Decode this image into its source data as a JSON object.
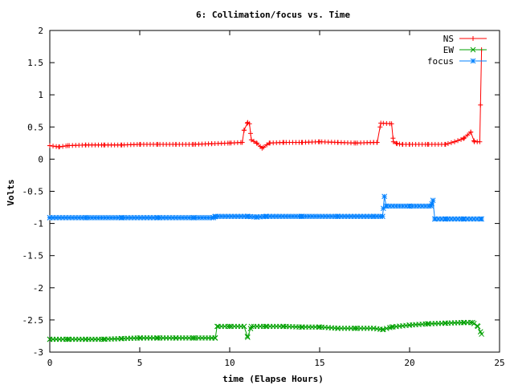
{
  "chart_data": {
    "type": "line",
    "title": "6: Collimation/focus vs. Time",
    "xlabel": "time (Elapse Hours)",
    "ylabel": "Volts",
    "xlim": [
      0,
      25
    ],
    "ylim": [
      -3,
      2
    ],
    "xticks": [
      0,
      5,
      10,
      15,
      20,
      25
    ],
    "xtick_labels": [
      "0",
      "5",
      "10",
      "15",
      "20",
      "25"
    ],
    "yticks": [
      2,
      1.5,
      1,
      0.5,
      0,
      -0.5,
      -1,
      -1.5,
      -2,
      -2.5,
      -3
    ],
    "ytick_labels": [
      "2",
      "1.5",
      "1",
      "0.5",
      "0",
      "-0.5",
      "-1",
      "-1.5",
      "-2",
      "-2.5",
      "-3"
    ],
    "legend_position": "top-right",
    "series": [
      {
        "name": "NS",
        "color": "#ff0000",
        "marker": "plus",
        "x": [
          0,
          0.5,
          1,
          2,
          3,
          4,
          5,
          6,
          7,
          8,
          9,
          10,
          10.7,
          10.8,
          11.0,
          11.1,
          11.2,
          11.5,
          11.8,
          12.2,
          13,
          14,
          15,
          16,
          17,
          18,
          18.2,
          18.4,
          19.0,
          19.1,
          19.3,
          19.6,
          20,
          21,
          22,
          22.5,
          23,
          23.4,
          23.6,
          23.9,
          24.0
        ],
        "y": [
          0.21,
          0.19,
          0.21,
          0.22,
          0.22,
          0.22,
          0.23,
          0.23,
          0.23,
          0.23,
          0.24,
          0.25,
          0.26,
          0.45,
          0.57,
          0.55,
          0.3,
          0.25,
          0.17,
          0.25,
          0.26,
          0.26,
          0.27,
          0.26,
          0.25,
          0.26,
          0.26,
          0.56,
          0.55,
          0.27,
          0.24,
          0.23,
          0.23,
          0.23,
          0.23,
          0.27,
          0.32,
          0.42,
          0.27,
          0.27,
          1.7
        ]
      },
      {
        "name": "EW",
        "color": "#00a000",
        "marker": "x",
        "x": [
          0,
          1,
          2,
          3,
          4,
          5,
          6,
          7,
          8,
          9,
          9.2,
          9.3,
          10,
          10.8,
          11.0,
          11.2,
          12,
          13,
          14,
          15,
          16,
          17,
          18,
          18.5,
          19,
          20,
          21,
          22,
          23,
          23.5,
          23.8,
          24.0
        ],
        "y": [
          -2.8,
          -2.8,
          -2.8,
          -2.8,
          -2.79,
          -2.78,
          -2.78,
          -2.78,
          -2.78,
          -2.78,
          -2.78,
          -2.6,
          -2.6,
          -2.6,
          -2.77,
          -2.6,
          -2.6,
          -2.6,
          -2.61,
          -2.61,
          -2.63,
          -2.63,
          -2.63,
          -2.65,
          -2.61,
          -2.58,
          -2.56,
          -2.55,
          -2.54,
          -2.54,
          -2.6,
          -2.72
        ]
      },
      {
        "name": "focus",
        "color": "#0080ff",
        "marker": "star",
        "x": [
          0,
          2,
          4,
          6,
          8,
          9.1,
          9.2,
          11,
          11.5,
          12,
          14,
          16,
          18,
          18.5,
          18.6,
          18.7,
          20,
          21.2,
          21.3,
          21.4,
          22,
          23,
          24.0
        ],
        "y": [
          -0.91,
          -0.91,
          -0.91,
          -0.91,
          -0.91,
          -0.91,
          -0.89,
          -0.89,
          -0.9,
          -0.89,
          -0.89,
          -0.89,
          -0.89,
          -0.89,
          -0.58,
          -0.73,
          -0.73,
          -0.73,
          -0.64,
          -0.93,
          -0.93,
          -0.93,
          -0.93
        ]
      }
    ]
  }
}
